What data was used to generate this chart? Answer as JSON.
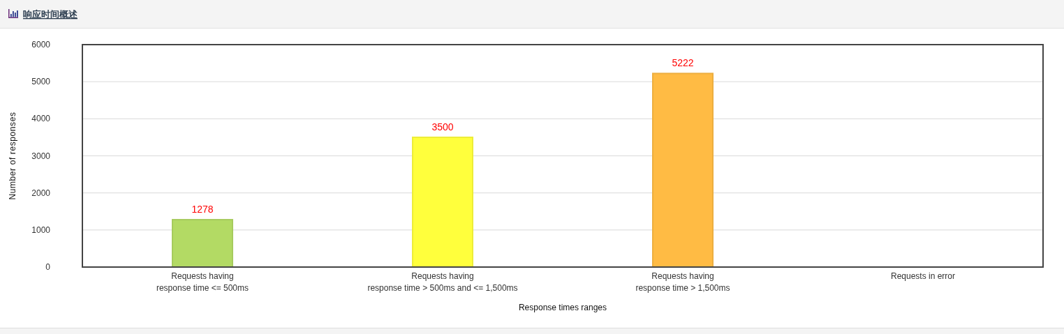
{
  "chart_data": {
    "type": "bar",
    "title": "响应时间概述",
    "categories": [
      "Requests having\nresponse time <= 500ms",
      "Requests having\nresponse time > 500ms and <= 1,500ms",
      "Requests having\nresponse time > 1,500ms",
      "Requests in error"
    ],
    "values": [
      1278,
      3500,
      5222,
      null
    ],
    "colors": [
      "#b3da64",
      "#ffff3c",
      "#ffbb44",
      null
    ],
    "xlabel": "Response times ranges",
    "ylabel": "Number of responses",
    "ylim": [
      0,
      6000
    ],
    "yticks": [
      0,
      1000,
      2000,
      3000,
      4000,
      5000,
      6000
    ],
    "grid": "y",
    "data_labels": true
  }
}
